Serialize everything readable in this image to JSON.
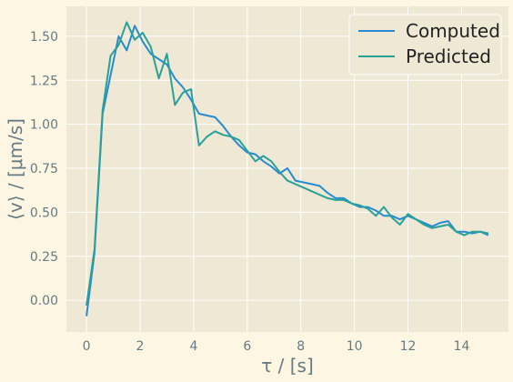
{
  "chart_data": {
    "type": "line",
    "title": "",
    "xlabel": "τ / [s]",
    "ylabel": "⟨v⟩ / [μm/s]",
    "xlim": [
      -0.75,
      15.75
    ],
    "ylim": [
      -0.18,
      1.67
    ],
    "xticks": [
      0,
      2,
      4,
      6,
      8,
      10,
      12,
      14
    ],
    "yticks": [
      0.0,
      0.25,
      0.5,
      0.75,
      1.0,
      1.25,
      1.5
    ],
    "xtick_labels": [
      "0",
      "2",
      "4",
      "6",
      "8",
      "10",
      "12",
      "14"
    ],
    "ytick_labels": [
      "0.00",
      "0.25",
      "0.50",
      "0.75",
      "1.00",
      "1.25",
      "1.50"
    ],
    "grid": true,
    "legend_position": "top-right",
    "colors": {
      "background": "#eee8d5",
      "grid": "#ffffff",
      "figure": "#fdf6e3"
    },
    "series": [
      {
        "name": "Computed",
        "color": "#268bd2",
        "x": [
          0,
          0.3,
          0.6,
          0.9,
          1.2,
          1.5,
          1.8,
          2.1,
          2.4,
          2.7,
          3.0,
          3.3,
          3.6,
          3.9,
          4.2,
          4.5,
          4.8,
          5.1,
          5.4,
          5.7,
          6.0,
          6.3,
          6.6,
          6.9,
          7.2,
          7.5,
          7.8,
          8.1,
          8.4,
          8.7,
          9.0,
          9.3,
          9.6,
          9.9,
          10.2,
          10.5,
          10.8,
          11.1,
          11.4,
          11.7,
          12.0,
          12.3,
          12.6,
          12.9,
          13.2,
          13.5,
          13.8,
          14.1,
          14.4,
          14.7,
          15.0
        ],
        "values": [
          -0.09,
          0.27,
          1.06,
          1.28,
          1.5,
          1.42,
          1.56,
          1.47,
          1.4,
          1.37,
          1.34,
          1.26,
          1.21,
          1.14,
          1.06,
          1.05,
          1.04,
          0.99,
          0.93,
          0.88,
          0.84,
          0.83,
          0.79,
          0.76,
          0.72,
          0.75,
          0.68,
          0.67,
          0.66,
          0.65,
          0.61,
          0.58,
          0.58,
          0.55,
          0.53,
          0.53,
          0.51,
          0.48,
          0.48,
          0.46,
          0.48,
          0.46,
          0.44,
          0.42,
          0.44,
          0.45,
          0.39,
          0.39,
          0.38,
          0.39,
          0.37
        ]
      },
      {
        "name": "Predicted",
        "color": "#2aa198",
        "x": [
          0,
          0.3,
          0.6,
          0.9,
          1.2,
          1.5,
          1.8,
          2.1,
          2.4,
          2.7,
          3.0,
          3.3,
          3.6,
          3.9,
          4.2,
          4.5,
          4.8,
          5.1,
          5.4,
          5.7,
          6.0,
          6.3,
          6.6,
          6.9,
          7.2,
          7.5,
          7.8,
          8.1,
          8.4,
          8.7,
          9.0,
          9.3,
          9.6,
          9.9,
          10.2,
          10.5,
          10.8,
          11.1,
          11.4,
          11.7,
          12.0,
          12.3,
          12.6,
          12.9,
          13.2,
          13.5,
          13.8,
          14.1,
          14.4,
          14.7,
          15.0
        ],
        "values": [
          -0.03,
          0.29,
          1.08,
          1.39,
          1.45,
          1.58,
          1.48,
          1.52,
          1.44,
          1.26,
          1.4,
          1.11,
          1.18,
          1.2,
          0.88,
          0.93,
          0.96,
          0.94,
          0.93,
          0.91,
          0.85,
          0.79,
          0.82,
          0.79,
          0.73,
          0.68,
          0.66,
          0.64,
          0.62,
          0.6,
          0.58,
          0.57,
          0.57,
          0.55,
          0.54,
          0.52,
          0.48,
          0.53,
          0.47,
          0.43,
          0.49,
          0.46,
          0.43,
          0.41,
          0.42,
          0.43,
          0.39,
          0.37,
          0.39,
          0.39,
          0.38
        ]
      }
    ]
  }
}
